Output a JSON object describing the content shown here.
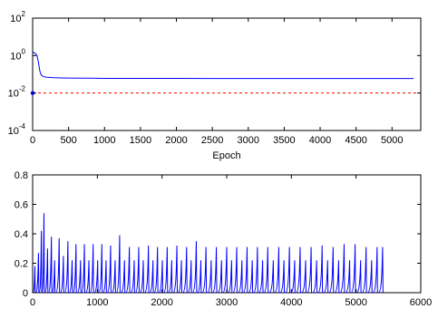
{
  "chart_data": [
    {
      "type": "line",
      "title": "",
      "xlabel": "Epoch",
      "ylabel": "",
      "xlim": [
        0,
        5400
      ],
      "yscale": "log",
      "ylim": [
        0.0001,
        100
      ],
      "grid": false,
      "x_ticks": [
        "0",
        "500",
        "1000",
        "1500",
        "2000",
        "2500",
        "3000",
        "3500",
        "4000",
        "4500",
        "5000"
      ],
      "y_ticks": [
        {
          "base": "10",
          "exp": "-4"
        },
        {
          "base": "10",
          "exp": "-2"
        },
        {
          "base": "10",
          "exp": "0"
        },
        {
          "base": "10",
          "exp": "2"
        }
      ],
      "series": [
        {
          "color": "#0000ff",
          "style": "solid",
          "x": [
            0,
            20,
            40,
            60,
            80,
            100,
            120,
            150,
            200,
            300,
            400,
            500,
            600,
            800,
            1000,
            1500,
            2000,
            2500,
            3000,
            3500,
            4000,
            4500,
            5000,
            5300
          ],
          "y": [
            1.6,
            1.4,
            1.3,
            1.0,
            0.45,
            0.15,
            0.09,
            0.075,
            0.07,
            0.066,
            0.064,
            0.063,
            0.062,
            0.062,
            0.061,
            0.061,
            0.061,
            0.06,
            0.06,
            0.06,
            0.06,
            0.06,
            0.06,
            0.06
          ]
        },
        {
          "color": "#ff0000",
          "style": "dashed",
          "x": [
            0,
            5400
          ],
          "y": [
            0.01,
            0.01
          ]
        }
      ],
      "markers": [
        {
          "x": 0,
          "y": 0.01,
          "color": "#0000ff"
        }
      ]
    },
    {
      "type": "line",
      "title": "",
      "xlabel": "",
      "ylabel": "",
      "xlim": [
        0,
        6000
      ],
      "ylim": [
        0,
        0.8
      ],
      "grid": false,
      "x_ticks": [
        "0",
        "1000",
        "2000",
        "3000",
        "4000",
        "5000",
        "6000"
      ],
      "y_ticks": [
        "0",
        "0.2",
        "0.4",
        "0.6",
        "0.8"
      ],
      "color": "#0000ff",
      "spikes": {
        "x": [
          35,
          90,
          135,
          175,
          230,
          290,
          340,
          410,
          475,
          545,
          610,
          670,
          740,
          800,
          870,
          935,
          1005,
          1070,
          1135,
          1205,
          1275,
          1345,
          1420,
          1495,
          1570,
          1640,
          1710,
          1790,
          1860,
          1930,
          2005,
          2080,
          2150,
          2230,
          2300,
          2380,
          2450,
          2530,
          2600,
          2680,
          2760,
          2840,
          2920,
          3000,
          3075,
          3155,
          3235,
          3315,
          3395,
          3475,
          3555,
          3635,
          3720,
          3805,
          3885,
          3970,
          4050,
          4135,
          4220,
          4305,
          4390,
          4475,
          4560,
          4645,
          4730,
          4815,
          4900,
          4985,
          5070,
          5155,
          5240,
          5325,
          5410
        ],
        "y": [
          0.18,
          0.27,
          0.42,
          0.54,
          0.3,
          0.38,
          0.22,
          0.37,
          0.25,
          0.35,
          0.22,
          0.33,
          0.22,
          0.33,
          0.22,
          0.33,
          0.22,
          0.33,
          0.22,
          0.32,
          0.22,
          0.39,
          0.22,
          0.31,
          0.22,
          0.31,
          0.22,
          0.32,
          0.22,
          0.31,
          0.22,
          0.31,
          0.22,
          0.32,
          0.22,
          0.31,
          0.22,
          0.35,
          0.22,
          0.31,
          0.22,
          0.31,
          0.22,
          0.31,
          0.22,
          0.31,
          0.22,
          0.31,
          0.22,
          0.31,
          0.22,
          0.31,
          0.22,
          0.31,
          0.22,
          0.31,
          0.22,
          0.31,
          0.22,
          0.31,
          0.22,
          0.32,
          0.22,
          0.31,
          0.22,
          0.33,
          0.22,
          0.33,
          0.22,
          0.31,
          0.22,
          0.31,
          0.31
        ]
      }
    }
  ]
}
